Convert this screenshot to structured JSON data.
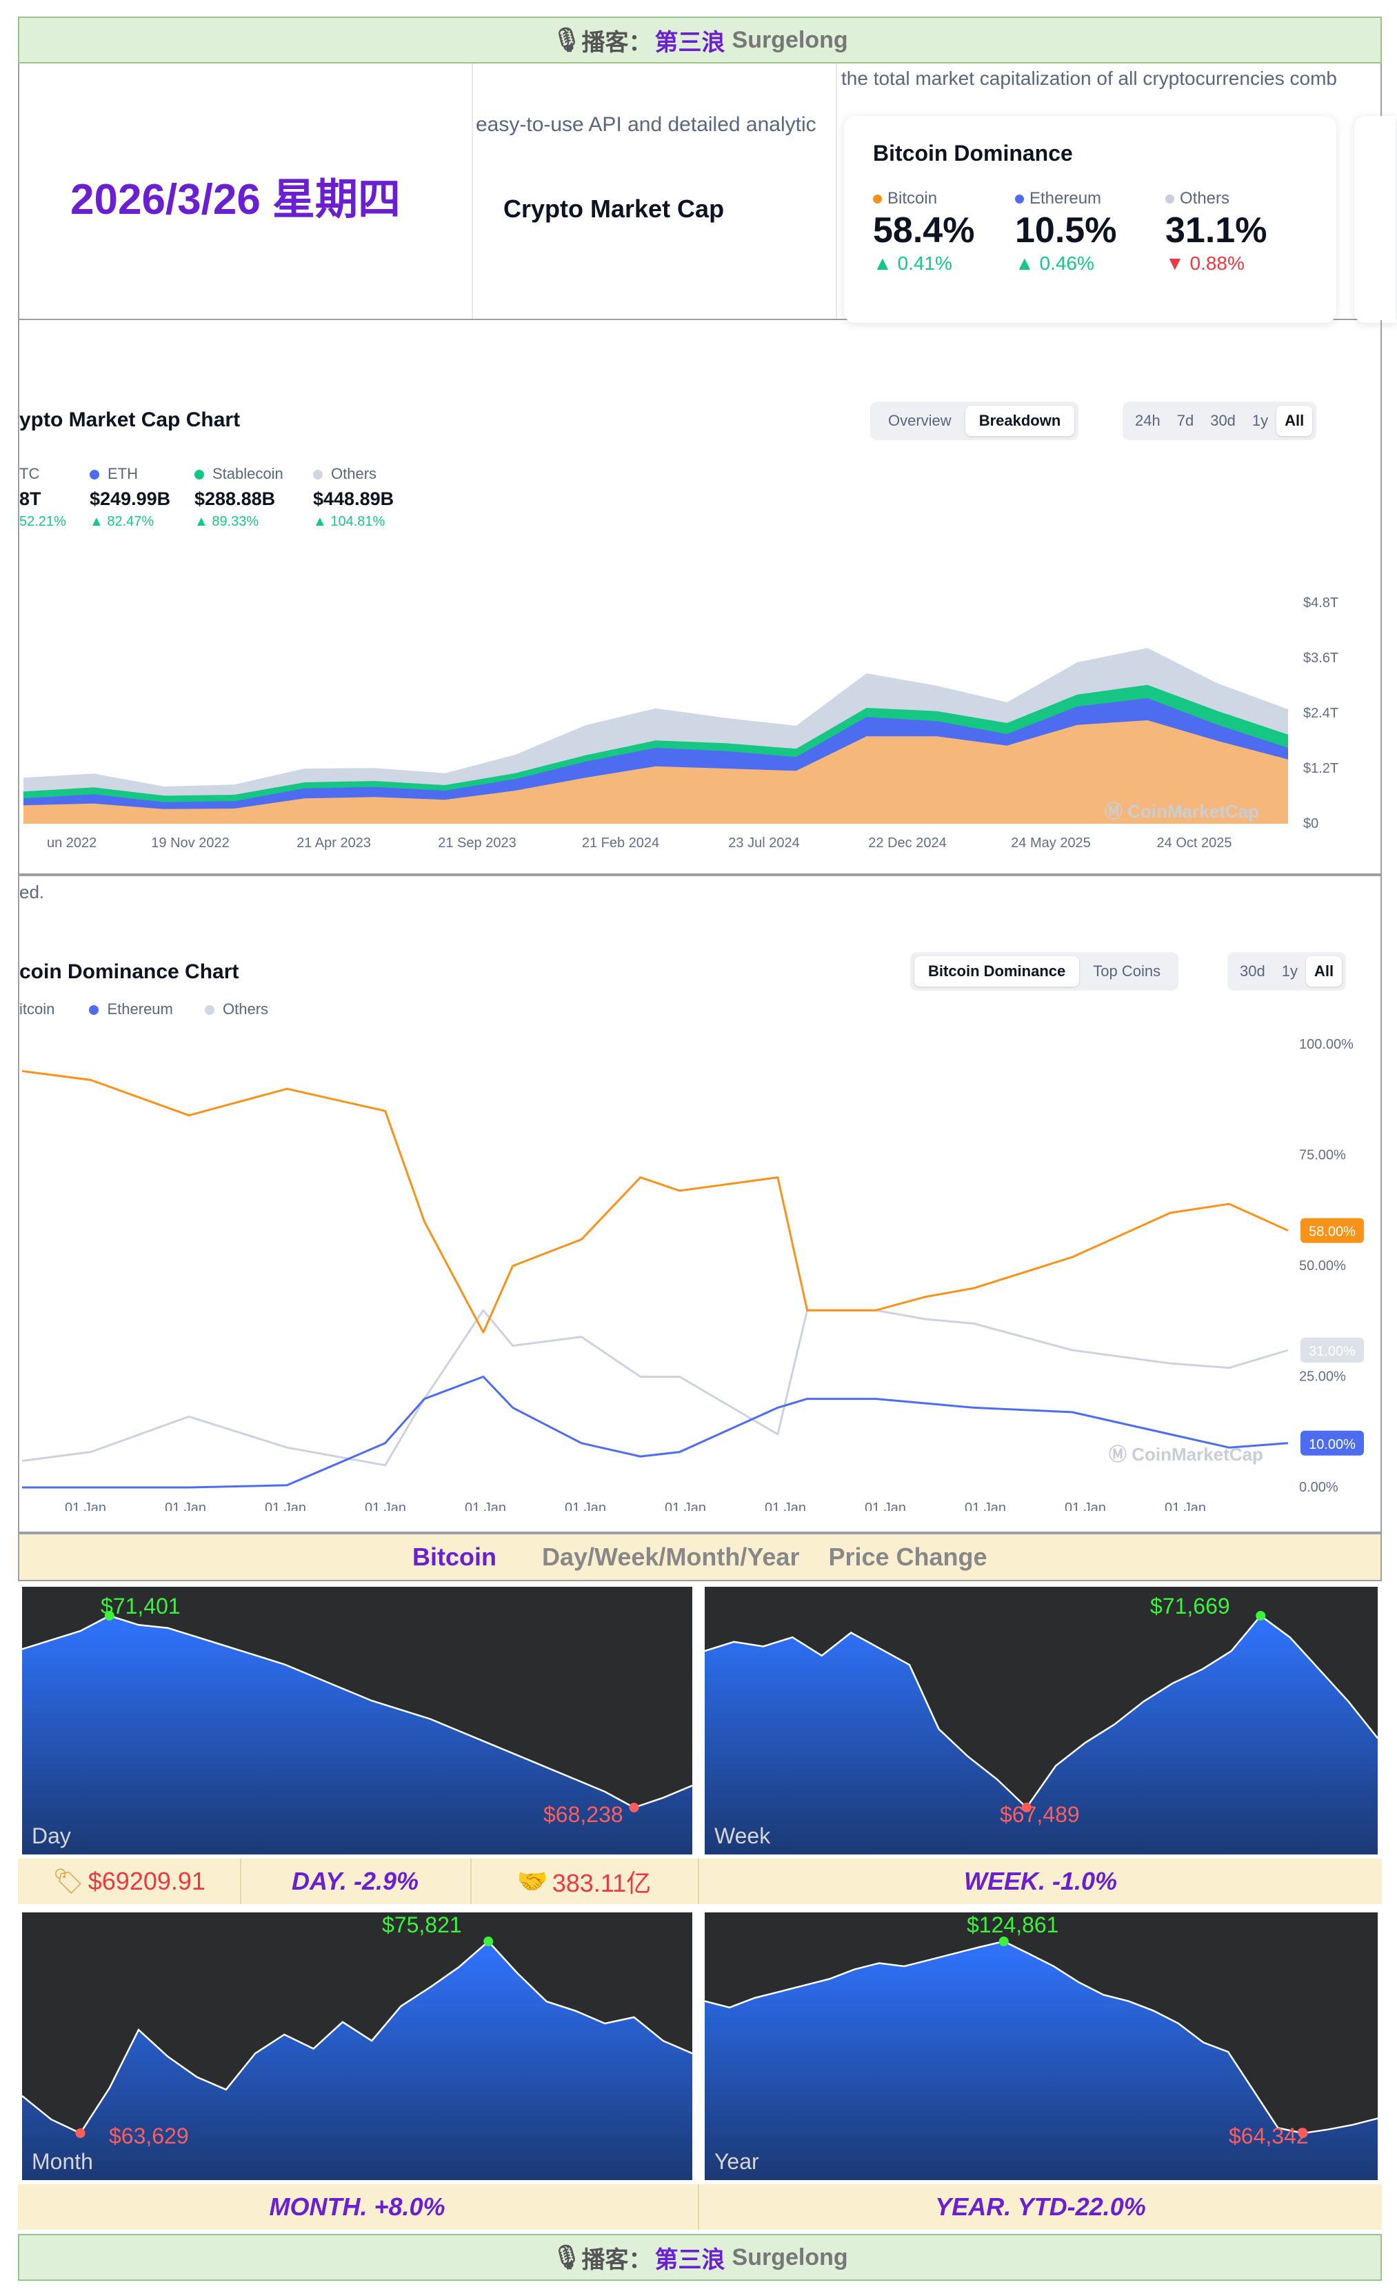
{
  "header_banner": {
    "icon": "🎙",
    "label": "播客：",
    "brand": "第三浪",
    "brand_en": "Surgelong"
  },
  "date_title": "2026/3/26 星期四",
  "snippet_api": "easy-to-use API and detailed analytic",
  "snippet_total": "the total market capitalization of all cryptocurrencies comb",
  "crypto_market_cap_title": "Crypto Market Cap",
  "dominance_card": {
    "title": "Bitcoin Dominance",
    "items": [
      {
        "name": "Bitcoin",
        "value": "58.4%",
        "change": "0.41%",
        "direction": "up",
        "color": "#f7931a"
      },
      {
        "name": "Ethereum",
        "value": "10.5%",
        "change": "0.46%",
        "direction": "up",
        "color": "#4d6cf0"
      },
      {
        "name": "Others",
        "value": "31.1%",
        "change": "0.88%",
        "direction": "down",
        "color": "#c9ced8"
      }
    ]
  },
  "colors": {
    "up": "#16c784",
    "down": "#ea3943",
    "accent_purple": "#6a1fd0",
    "btc": "#f7931a",
    "eth": "#4d6cf0",
    "stable": "#16c784",
    "others": "#cfd6e4"
  },
  "market_cap_chart": {
    "title": "ypto Market Cap Chart",
    "tabs": [
      "Overview",
      "Breakdown"
    ],
    "selected_tab": "Breakdown",
    "ranges": [
      "24h",
      "7d",
      "30d",
      "1y",
      "All"
    ],
    "selected_range": "All",
    "legend": [
      {
        "name": "TC",
        "value": "8T",
        "change": "52.21%",
        "color": "#f7931a"
      },
      {
        "name": "ETH",
        "value": "$249.99B",
        "change": "82.47%",
        "color": "#4d6cf0"
      },
      {
        "name": "Stablecoin",
        "value": "$288.88B",
        "change": "89.33%",
        "color": "#16c784"
      },
      {
        "name": "Others",
        "value": "$448.89B",
        "change": "104.81%",
        "color": "#cfd6e4"
      }
    ],
    "watermark": "CoinMarketCap",
    "footnote": "ed."
  },
  "dominance_chart": {
    "title": "coin Dominance Chart",
    "tabs": [
      "Bitcoin Dominance",
      "Top Coins"
    ],
    "selected_tab": "Bitcoin Dominance",
    "ranges": [
      "30d",
      "1y",
      "All"
    ],
    "selected_range": "All",
    "legend": [
      {
        "name": "itcoin",
        "color": "#f7931a"
      },
      {
        "name": "Ethereum",
        "color": "#4d6cf0"
      },
      {
        "name": "Others",
        "color": "#cfd6e4"
      }
    ],
    "badges": {
      "btc": "58.00%",
      "others": "31.00%",
      "eth": "10.00%"
    },
    "watermark": "CoinMarketCap"
  },
  "price_change_header": {
    "coin": "Bitcoin",
    "period": "Day/Week/Month/Year",
    "label": "Price Change"
  },
  "panels": [
    {
      "label": "Day",
      "high": "$71,401",
      "low": "$68,238"
    },
    {
      "label": "Week",
      "high": "$71,669",
      "low": "$67,489"
    },
    {
      "label": "Month",
      "high": "$75,821",
      "low": "$63,629"
    },
    {
      "label": "Year",
      "high": "$124,861",
      "low": "$64,342"
    }
  ],
  "stats_row1": {
    "price": "$69209.91",
    "day": "DAY.   -2.9%",
    "volume": "383.11亿",
    "week": "WEEK.   -1.0%"
  },
  "stats_row2": {
    "month": "MONTH.   +8.0%",
    "year": "YEAR.  YTD-22.0%"
  },
  "footer_banner": {
    "icon": "🎙",
    "label": "播客：",
    "brand": "第三浪",
    "brand_en": "Surgelong"
  },
  "chart_data": [
    {
      "type": "area",
      "title": "ypto Market Cap Chart",
      "x_ticks": [
        "un 2022",
        "19 Nov 2022",
        "21 Apr 2023",
        "21 Sep 2023",
        "21 Feb 2024",
        "23 Jul 2024",
        "22 Dec 2024",
        "24 May 2025",
        "24 Oct 2025"
      ],
      "y_ticks": [
        "$0",
        "$1.2T",
        "$2.4T",
        "$3.6T",
        "$4.8T"
      ],
      "ylim": [
        0,
        4.8
      ],
      "y_unit": "T",
      "stacked": true,
      "x": [
        "2022-06",
        "2022-08",
        "2022-11",
        "2023-01",
        "2023-04",
        "2023-06",
        "2023-09",
        "2023-11",
        "2024-02",
        "2024-04",
        "2024-07",
        "2024-09",
        "2024-12",
        "2025-02",
        "2025-05",
        "2025-07",
        "2025-10",
        "2025-12",
        "2026-03"
      ],
      "series": [
        {
          "name": "BTC",
          "values": [
            0.4,
            0.44,
            0.32,
            0.33,
            0.55,
            0.58,
            0.52,
            0.72,
            1.0,
            1.25,
            1.2,
            1.15,
            1.9,
            1.9,
            1.7,
            2.15,
            2.25,
            1.8,
            1.4
          ]
        },
        {
          "name": "ETH",
          "values": [
            0.15,
            0.2,
            0.15,
            0.16,
            0.22,
            0.22,
            0.2,
            0.25,
            0.35,
            0.4,
            0.38,
            0.3,
            0.42,
            0.33,
            0.25,
            0.4,
            0.48,
            0.35,
            0.25
          ]
        },
        {
          "name": "Stablecoin",
          "values": [
            0.15,
            0.15,
            0.14,
            0.14,
            0.13,
            0.13,
            0.12,
            0.13,
            0.14,
            0.16,
            0.17,
            0.18,
            0.2,
            0.22,
            0.24,
            0.26,
            0.29,
            0.3,
            0.29
          ]
        },
        {
          "name": "Others",
          "values": [
            0.3,
            0.3,
            0.2,
            0.22,
            0.3,
            0.28,
            0.26,
            0.4,
            0.65,
            0.7,
            0.55,
            0.5,
            0.75,
            0.55,
            0.45,
            0.7,
            0.8,
            0.6,
            0.55
          ]
        }
      ]
    },
    {
      "type": "line",
      "title": "coin Dominance Chart",
      "x_ticks": [
        "01 Jan",
        "01 Jan",
        "01 Jan",
        "01 Jan",
        "01 Jan",
        "01 Jan",
        "01 Jan",
        "01 Jan",
        "01 Jan",
        "01 Jan",
        "01 Jan",
        "01 Jan"
      ],
      "y_ticks": [
        "0.00%",
        "25.00%",
        "50.00%",
        "75.00%",
        "100.00%"
      ],
      "ylim": [
        0,
        100
      ],
      "x": [
        2013.3,
        2014,
        2015,
        2016,
        2017,
        2017.4,
        2018,
        2018.3,
        2019,
        2019.6,
        2020,
        2021,
        2021.3,
        2022,
        2022.5,
        2023,
        2024,
        2025,
        2025.6,
        2026.2
      ],
      "series": [
        {
          "name": "Bitcoin",
          "values": [
            94,
            92,
            84,
            90,
            85,
            60,
            35,
            50,
            56,
            70,
            67,
            70,
            40,
            40,
            43,
            45,
            52,
            62,
            64,
            58
          ]
        },
        {
          "name": "Ethereum",
          "values": [
            0,
            0,
            0,
            0.5,
            10,
            20,
            25,
            18,
            10,
            7,
            8,
            18,
            20,
            20,
            19,
            18,
            17,
            12,
            9,
            10
          ]
        },
        {
          "name": "Others",
          "values": [
            6,
            8,
            16,
            9,
            5,
            20,
            40,
            32,
            34,
            25,
            25,
            12,
            40,
            40,
            38,
            37,
            31,
            28,
            27,
            31
          ]
        }
      ]
    },
    {
      "type": "area",
      "title": "Day",
      "series": [
        {
          "name": "Day",
          "values": [
            70850,
            71000,
            71150,
            71401,
            71250,
            71200,
            71050,
            70900,
            70750,
            70600,
            70400,
            70200,
            70000,
            69850,
            69700,
            69500,
            69300,
            69100,
            68900,
            68700,
            68500,
            68238,
            68400,
            68600
          ]
        }
      ]
    },
    {
      "type": "area",
      "title": "Week",
      "series": [
        {
          "name": "Week",
          "values": [
            70900,
            71100,
            71000,
            71200,
            70800,
            71300,
            70950,
            70600,
            69200,
            68600,
            68100,
            67489,
            68400,
            68900,
            69300,
            69800,
            70200,
            70500,
            70900,
            71669,
            71200,
            70500,
            69800,
            69000
          ]
        }
      ]
    },
    {
      "type": "area",
      "title": "Month",
      "series": [
        {
          "name": "Month",
          "values": [
            66000,
            64500,
            63629,
            66500,
            70200,
            68500,
            67200,
            66400,
            68700,
            69900,
            69000,
            70700,
            69500,
            71700,
            72900,
            74200,
            75821,
            73800,
            72000,
            71400,
            70600,
            71000,
            69500,
            68700
          ]
        }
      ]
    },
    {
      "type": "area",
      "title": "Year",
      "series": [
        {
          "name": "Year",
          "values": [
            106000,
            104000,
            107000,
            109000,
            111000,
            113000,
            116000,
            118000,
            117000,
            119000,
            121000,
            123000,
            124861,
            121000,
            117000,
            112000,
            108000,
            106000,
            103000,
            99000,
            93000,
            90000,
            78000,
            66000,
            64342,
            65500,
            67000,
            69000
          ]
        }
      ]
    }
  ]
}
